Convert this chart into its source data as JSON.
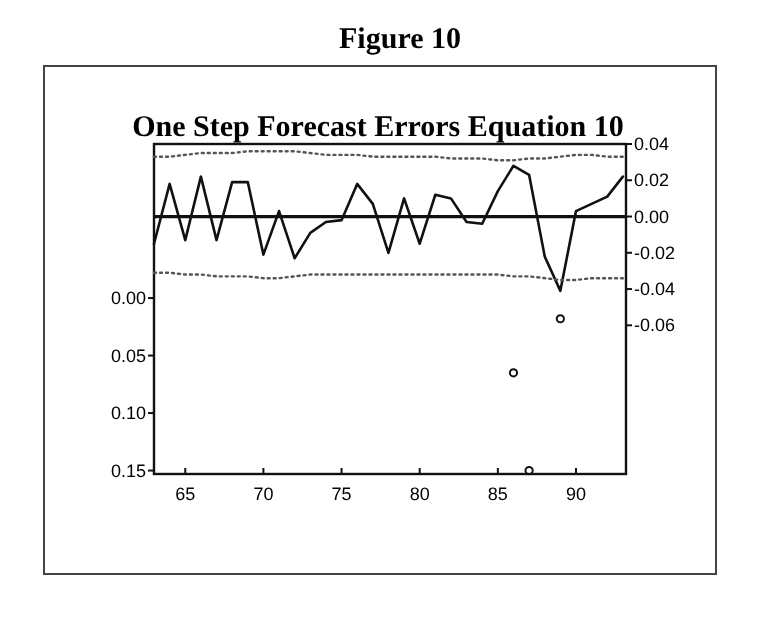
{
  "chart_data": {
    "type": "line",
    "title": "Figure 10",
    "subtitle": "One Step Forecast Errors Equation 10",
    "x": [
      63,
      64,
      65,
      66,
      67,
      68,
      69,
      70,
      71,
      72,
      73,
      74,
      75,
      76,
      77,
      78,
      79,
      80,
      81,
      82,
      83,
      84,
      85,
      86,
      87,
      88,
      89,
      90,
      91,
      92,
      93
    ],
    "xlim": [
      63,
      93.2
    ],
    "xticks": [
      65,
      70,
      75,
      80,
      85,
      90
    ],
    "ylim": [
      0.153,
      -0.134
    ],
    "yticks": [
      {
        "value": 0,
        "label": "0.00"
      },
      {
        "value": 0.05,
        "label": "0.05"
      },
      {
        "value": 0.1,
        "label": "0.10"
      },
      {
        "value": 0.15,
        "label": "0.15"
      }
    ],
    "y2lim": [
      -0.142,
      0.04
    ],
    "y2ticks": [
      {
        "value": 0.04,
        "label": "0.04"
      },
      {
        "value": 0.02,
        "label": "0.02"
      },
      {
        "value": 0,
        "label": "0.00"
      },
      {
        "value": -0.02,
        "label": "-0.02"
      },
      {
        "value": -0.04,
        "label": "-0.04"
      },
      {
        "value": -0.06,
        "label": "-0.06"
      }
    ],
    "series": [
      {
        "axis": "y2",
        "color": "#111111",
        "line_style": "solid",
        "values": [
          -0.015,
          0.018,
          -0.013,
          0.022,
          -0.013,
          0.019,
          0.019,
          -0.021,
          0.003,
          -0.023,
          -0.009,
          -0.003,
          -0.002,
          0.018,
          0.007,
          -0.02,
          0.01,
          -0.015,
          0.012,
          0.01,
          -0.003,
          -0.004,
          0.014,
          0.028,
          0.023,
          -0.022,
          -0.041,
          0.003,
          0.007,
          0.011,
          0.022
        ]
      },
      {
        "type": "line",
        "axis": "y2",
        "color": "#555555",
        "line_style": "dotted",
        "values": [
          0.033,
          0.033,
          0.034,
          0.035,
          0.035,
          0.035,
          0.036,
          0.036,
          0.036,
          0.036,
          0.035,
          0.034,
          0.034,
          0.034,
          0.033,
          0.033,
          0.033,
          0.033,
          0.033,
          0.032,
          0.032,
          0.032,
          0.031,
          0.031,
          0.032,
          0.032,
          0.033,
          0.034,
          0.034,
          0.033,
          0.033
        ]
      },
      {
        "type": "line",
        "axis": "y2",
        "color": "#555555",
        "line_style": "dotted",
        "values": [
          -0.031,
          -0.031,
          -0.032,
          -0.032,
          -0.033,
          -0.033,
          -0.033,
          -0.034,
          -0.034,
          -0.033,
          -0.032,
          -0.032,
          -0.032,
          -0.032,
          -0.032,
          -0.032,
          -0.032,
          -0.032,
          -0.032,
          -0.032,
          -0.032,
          -0.032,
          -0.032,
          -0.033,
          -0.033,
          -0.034,
          -0.035,
          -0.035,
          -0.034,
          -0.034,
          -0.034
        ]
      },
      {
        "type": "scatter",
        "axis": "y",
        "color": "#111111",
        "marker": "circle",
        "x": [
          86,
          87,
          89
        ],
        "values": [
          0.065,
          0.15,
          0.018
        ]
      }
    ],
    "ref_lines": [
      {
        "axis": "y2",
        "value": 0,
        "color": "#111111"
      }
    ],
    "grid": false
  }
}
